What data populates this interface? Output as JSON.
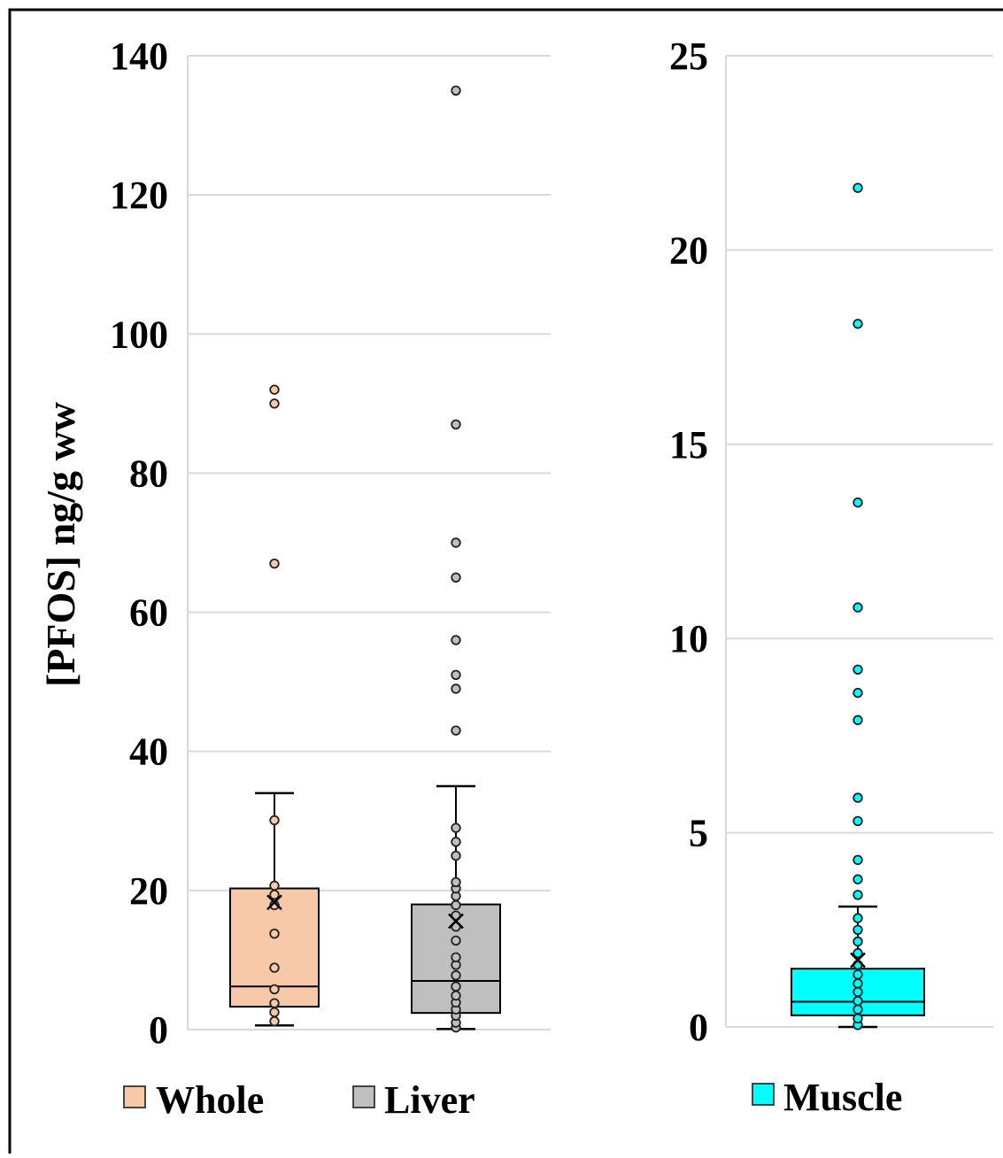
{
  "chart_data": [
    {
      "type": "box",
      "ylabel": "[PFOS] ng/g ww",
      "ylim": [
        0,
        140
      ],
      "yticks": [
        0,
        20,
        40,
        60,
        80,
        100,
        120,
        140
      ],
      "grid": true,
      "legend_position": "bottom",
      "series": [
        {
          "name": "Whole",
          "color": "#f7c9a9",
          "q1": 3.3,
          "median": 6.2,
          "q3": 20.3,
          "mean": 18.3,
          "whisker_low": 0.6,
          "whisker_high": 34,
          "points": [
            1.2,
            2.5,
            3.8,
            5.8,
            8.9,
            13.8,
            17.9,
            19.4,
            20.7,
            30.1,
            67,
            90,
            92
          ]
        },
        {
          "name": "Liver",
          "color": "#bfbfbf",
          "q1": 2.4,
          "median": 7.0,
          "q3": 18.0,
          "mean": 15.6,
          "whisker_low": 0.1,
          "whisker_high": 35,
          "points": [
            0.3,
            1.0,
            2.0,
            2.9,
            3.9,
            4.9,
            6.2,
            7.8,
            9.3,
            10.4,
            12.8,
            14.8,
            16.4,
            17.9,
            19.2,
            20.3,
            21.2,
            25,
            27,
            29,
            43,
            49,
            51,
            56,
            65,
            70,
            87,
            135
          ]
        }
      ]
    },
    {
      "type": "box",
      "ylabel": "",
      "ylim": [
        0,
        25
      ],
      "yticks": [
        0,
        5,
        10,
        15,
        20,
        25
      ],
      "grid": true,
      "legend_position": "bottom",
      "series": [
        {
          "name": "Muscle",
          "color": "#00ffff",
          "q1": 0.3,
          "median": 0.65,
          "q3": 1.5,
          "mean": 1.72,
          "whisker_low": 0.0,
          "whisker_high": 3.1,
          "points": [
            0.05,
            0.22,
            0.45,
            0.67,
            0.9,
            1.12,
            1.35,
            1.6,
            1.9,
            2.2,
            2.5,
            2.8,
            3.4,
            3.8,
            4.3,
            5.3,
            5.9,
            7.9,
            8.6,
            9.2,
            10.8,
            13.5,
            18.1,
            21.6
          ]
        }
      ]
    }
  ]
}
